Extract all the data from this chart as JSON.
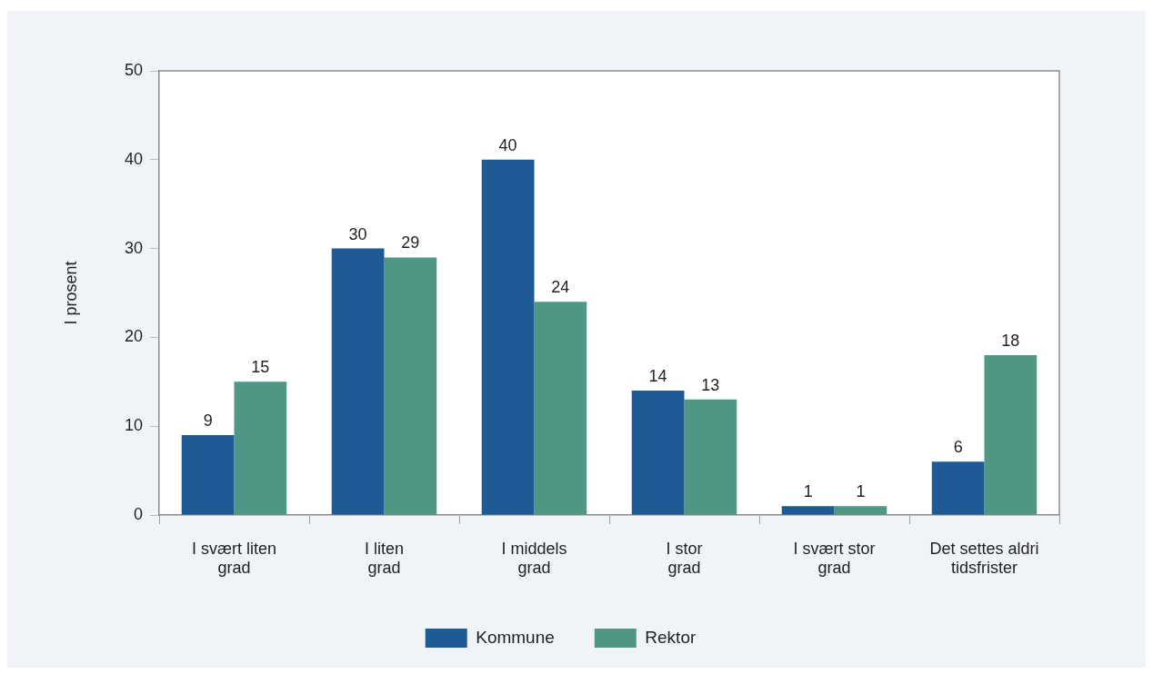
{
  "chart_data": {
    "type": "bar",
    "ylabel": "I prosent",
    "categories": [
      "I svært liten grad",
      "I liten grad",
      "I middels grad",
      "I stor grad",
      "I svært stor grad",
      "Det settes aldri tidsfrister"
    ],
    "series": [
      {
        "name": "Kommune",
        "color": "#1d5a96",
        "values": [
          9,
          30,
          40,
          14,
          1,
          6
        ]
      },
      {
        "name": "Rektor",
        "color": "#4f9784",
        "values": [
          15,
          29,
          24,
          13,
          1,
          18
        ]
      }
    ],
    "ylim": [
      0,
      50
    ],
    "yticks": [
      0,
      10,
      20,
      30,
      40,
      50
    ],
    "grid": false,
    "legend": "bottom",
    "data_labels": true
  }
}
